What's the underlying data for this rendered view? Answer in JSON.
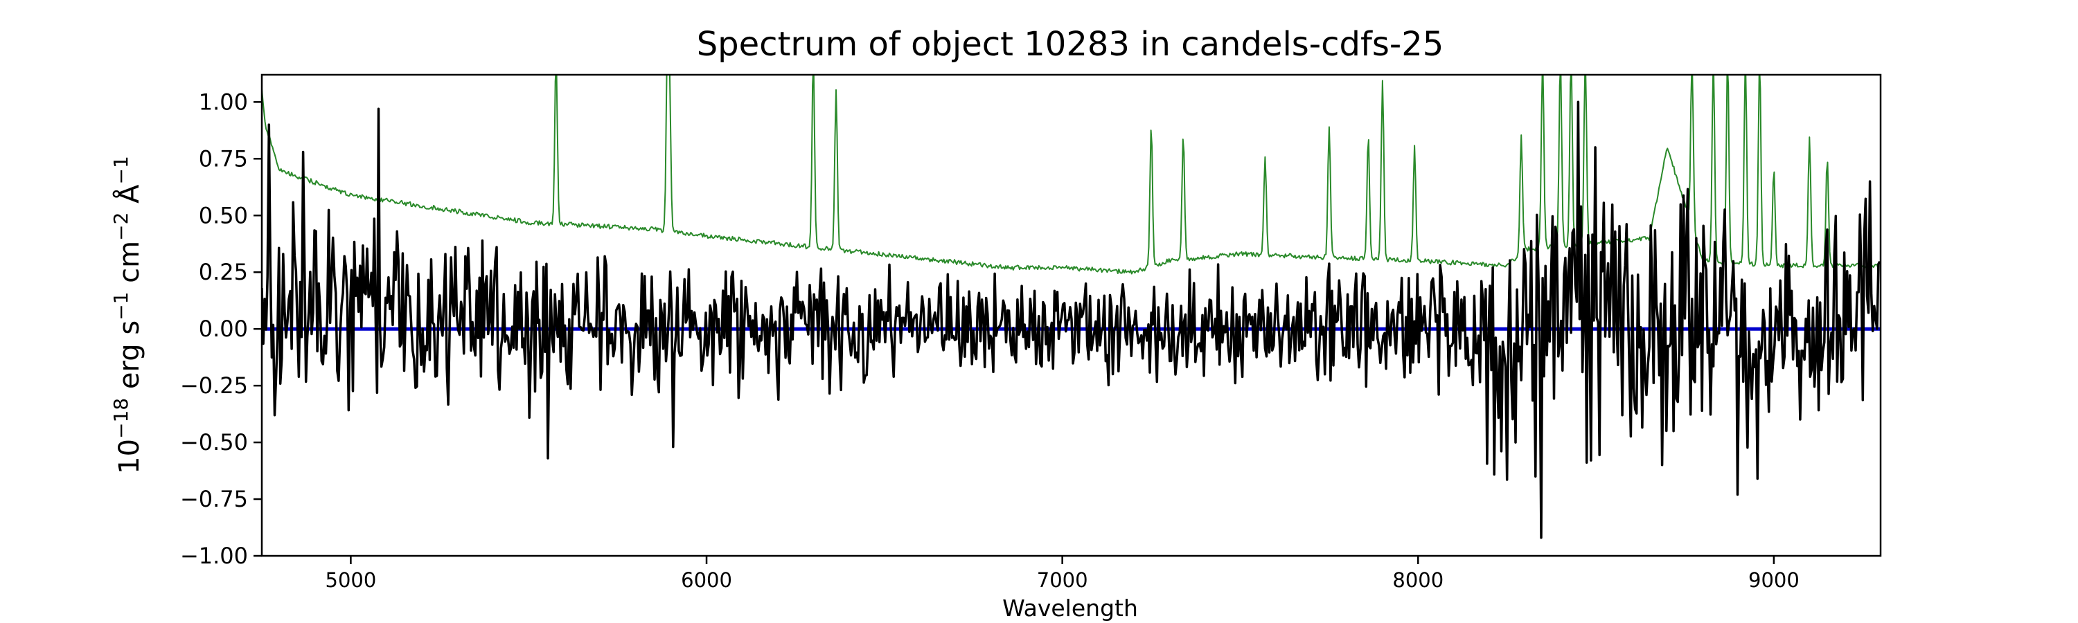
{
  "chart_data": {
    "type": "line",
    "title": "Spectrum of object 10283 in candels-cdfs-25",
    "xlabel": "Wavelength",
    "ylabel": {
      "base": "10",
      "exp": "−18",
      "unit_erg": "erg s",
      "unit_erg_exp": "−1",
      "unit_cm": "cm",
      "unit_cm_exp": "−2",
      "unit_ang": "Å",
      "unit_ang_exp": "−1"
    },
    "xlim": [
      4750,
      9300
    ],
    "ylim": [
      -1.0,
      1.12
    ],
    "x_ticks": [
      5000,
      6000,
      7000,
      8000,
      9000
    ],
    "x_tick_labels": [
      "5000",
      "6000",
      "7000",
      "8000",
      "9000"
    ],
    "y_ticks": [
      -1.0,
      -0.75,
      -0.5,
      -0.25,
      0.0,
      0.25,
      0.5,
      0.75,
      1.0
    ],
    "y_tick_labels": [
      "−1.00",
      "−0.75",
      "−0.50",
      "−0.25",
      "0.00",
      "0.25",
      "0.50",
      "0.75",
      "1.00"
    ],
    "grid": false,
    "legend": "none",
    "series": [
      {
        "role": "flux",
        "color": "#000000",
        "generator": "noise",
        "x": [
          4750,
          5000,
          5500,
          6000,
          6500,
          7000,
          7500,
          8000,
          8250,
          8500,
          8800,
          9000,
          9300
        ],
        "center": [
          0.02,
          0.05,
          0.0,
          0.02,
          0.02,
          0.01,
          0.0,
          0.0,
          0.0,
          0.05,
          0.0,
          0.0,
          0.05
        ],
        "amplitude": [
          0.28,
          0.3,
          0.2,
          0.18,
          0.16,
          0.13,
          0.14,
          0.18,
          0.35,
          0.4,
          0.35,
          0.3,
          0.3
        ],
        "extremes": [
          [
            4770,
            0.9
          ],
          [
            4785,
            -0.38
          ],
          [
            4865,
            0.78
          ],
          [
            5080,
            0.97
          ],
          [
            5555,
            -0.57
          ],
          [
            5905,
            -0.52
          ],
          [
            8275,
            -0.5
          ],
          [
            8330,
            -0.65
          ],
          [
            8345,
            -0.92
          ],
          [
            8385,
            0.45
          ],
          [
            8450,
            1.0
          ],
          [
            8500,
            0.8
          ],
          [
            8720,
            -0.45
          ],
          [
            8900,
            -0.73
          ],
          [
            8955,
            -0.66
          ],
          [
            9270,
            0.65
          ]
        ]
      },
      {
        "role": "error",
        "color": "#2a8a2a",
        "generator": "error",
        "x": [
          4750,
          4760,
          4800,
          5000,
          5500,
          5850,
          6000,
          6300,
          6850,
          7000,
          7200,
          7300,
          7500,
          8000,
          8250,
          8300,
          8650,
          8700,
          8800,
          9000,
          9300
        ],
        "y": [
          1.05,
          0.9,
          0.7,
          0.59,
          0.47,
          0.44,
          0.41,
          0.36,
          0.27,
          0.27,
          0.25,
          0.3,
          0.33,
          0.3,
          0.28,
          0.35,
          0.4,
          0.8,
          0.3,
          0.28,
          0.28
        ],
        "emission_lines": [
          [
            5577,
            1.2
          ],
          [
            5890,
            1.2
          ],
          [
            5896,
            1.0
          ],
          [
            6300,
            1.2
          ],
          [
            6364,
            1.06
          ],
          [
            7250,
            0.9
          ],
          [
            7340,
            0.85
          ],
          [
            7570,
            0.75
          ],
          [
            7750,
            0.9
          ],
          [
            7860,
            0.85
          ],
          [
            7900,
            1.1
          ],
          [
            7990,
            0.8
          ],
          [
            8290,
            0.85
          ],
          [
            8350,
            1.2
          ],
          [
            8400,
            1.2
          ],
          [
            8430,
            1.2
          ],
          [
            8470,
            1.2
          ],
          [
            8770,
            1.2
          ],
          [
            8830,
            1.2
          ],
          [
            8870,
            1.2
          ],
          [
            8920,
            1.2
          ],
          [
            8960,
            1.2
          ],
          [
            9000,
            0.7
          ],
          [
            9100,
            0.85
          ],
          [
            9150,
            0.75
          ]
        ]
      },
      {
        "role": "model",
        "color": "#0000cc",
        "x": [
          4750,
          9300
        ],
        "y": [
          0.0,
          0.0
        ]
      }
    ]
  }
}
